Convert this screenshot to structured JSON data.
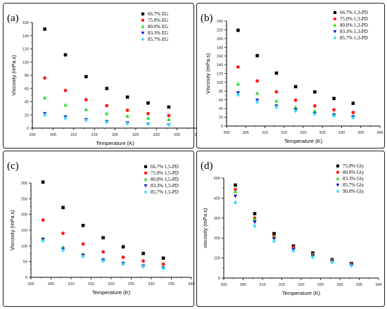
{
  "chart_data": [
    {
      "type": "scatter",
      "panel_label": "(a)",
      "xlabel": "Temperature (K)",
      "ylabel": "Viscosity (mPa.s)",
      "xlim": [
        300,
        340
      ],
      "ylim": [
        0,
        160
      ],
      "xticks": [
        300,
        305,
        310,
        315,
        320,
        325,
        330,
        335,
        340
      ],
      "yticks": [
        0,
        20,
        40,
        60,
        80,
        100,
        120,
        140,
        160
      ],
      "legend_position": "top-right",
      "series": [
        {
          "name": "66.7% EG",
          "marker": "square",
          "color": "#000000",
          "x": [
            303,
            308,
            313,
            318,
            323,
            328,
            333
          ],
          "y": [
            150,
            111,
            78,
            60,
            47,
            38,
            32
          ]
        },
        {
          "name": "75.0% EG",
          "marker": "circle",
          "color": "#ff1a1a",
          "x": [
            303,
            308,
            313,
            318,
            323,
            328,
            333
          ],
          "y": [
            76,
            57,
            43,
            34,
            27,
            22,
            19
          ]
        },
        {
          "name": "80.0% EG",
          "marker": "triangle-up",
          "color": "#22dd22",
          "x": [
            303,
            308,
            313,
            318,
            323,
            328,
            333
          ],
          "y": [
            46,
            35,
            28,
            22,
            18,
            15,
            13
          ]
        },
        {
          "name": "83.3% EG",
          "marker": "triangle-down",
          "color": "#1a1acc",
          "x": [
            303,
            308,
            313,
            318,
            323,
            328,
            333
          ],
          "y": [
            22,
            17,
            13,
            10,
            8,
            6,
            5
          ]
        },
        {
          "name": "85.7% EG",
          "marker": "diamond",
          "color": "#33ddff",
          "x": [
            303,
            308,
            313,
            318,
            323,
            328,
            333
          ],
          "y": [
            20,
            15,
            12,
            9,
            7,
            6,
            5
          ]
        }
      ]
    },
    {
      "type": "scatter",
      "panel_label": "(b)",
      "xlabel": "Temperature (K)",
      "ylabel": "Viscosity (mPa.s)",
      "xlim": [
        300,
        340
      ],
      "ylim": [
        0,
        240
      ],
      "xticks": [
        300,
        305,
        310,
        315,
        320,
        325,
        330,
        335,
        340
      ],
      "yticks": [
        0,
        20,
        40,
        60,
        80,
        100,
        120,
        140,
        160,
        180,
        200,
        220,
        240
      ],
      "legend_position": "top-right",
      "series": [
        {
          "name": "66.7% 1,3-PD",
          "marker": "square",
          "color": "#000000",
          "x": [
            303,
            308,
            313,
            318,
            323,
            328,
            333
          ],
          "y": [
            219,
            161,
            121,
            90,
            78,
            63,
            52
          ]
        },
        {
          "name": "75.0% 1,3-PD",
          "marker": "circle",
          "color": "#ff1a1a",
          "x": [
            303,
            308,
            313,
            318,
            323,
            328,
            333
          ],
          "y": [
            135,
            103,
            78,
            59,
            46,
            37,
            31
          ]
        },
        {
          "name": "80.0% 1,3-PD",
          "marker": "triangle-up",
          "color": "#22dd22",
          "x": [
            303,
            308,
            313,
            318,
            323,
            328,
            333
          ],
          "y": [
            96,
            75,
            57,
            43,
            34,
            27,
            23
          ]
        },
        {
          "name": "83.3% 1,3-PD",
          "marker": "triangle-down",
          "color": "#1a1acc",
          "x": [
            303,
            308,
            313,
            318,
            323,
            328,
            333
          ],
          "y": [
            76,
            59,
            46,
            37,
            29,
            25,
            21
          ]
        },
        {
          "name": "85.7% 1,3-PD",
          "marker": "diamond",
          "color": "#33ddff",
          "x": [
            303,
            308,
            313,
            318,
            323,
            328,
            333
          ],
          "y": [
            71,
            55,
            43,
            34,
            27,
            23,
            19
          ]
        }
      ]
    },
    {
      "type": "scatter",
      "panel_label": "(c)",
      "xlabel": "Temperature (K)",
      "ylabel": "Viscosity (mPa.s)",
      "xlim": [
        300,
        340
      ],
      "ylim": [
        0,
        300
      ],
      "xticks": [
        300,
        305,
        310,
        315,
        320,
        325,
        330,
        335,
        340
      ],
      "yticks": [
        0,
        50,
        100,
        150,
        200,
        250,
        300
      ],
      "legend_position": "top-right",
      "series": [
        {
          "name": "66.7% 1,5-PD",
          "marker": "square",
          "color": "#000000",
          "x": [
            303,
            308,
            313,
            318,
            323,
            328,
            333
          ],
          "y": [
            303,
            222,
            165,
            126,
            97,
            76,
            61
          ]
        },
        {
          "name": "75.0% 1,5-PD",
          "marker": "circle",
          "color": "#ff1a1a",
          "x": [
            303,
            308,
            313,
            318,
            323,
            328,
            333
          ],
          "y": [
            182,
            140,
            106,
            81,
            64,
            52,
            42
          ]
        },
        {
          "name": "80.0% 1,5-PD",
          "marker": "triangle-up",
          "color": "#22dd22",
          "x": [
            303,
            308,
            313,
            318,
            323,
            328,
            333
          ],
          "y": [
            124,
            96,
            74,
            58,
            47,
            38,
            32
          ]
        },
        {
          "name": "83.3% 1,5-PD",
          "marker": "triangle-down",
          "color": "#1a1acc",
          "x": [
            303,
            308,
            313,
            318,
            323,
            328,
            333
          ],
          "y": [
            121,
            90,
            70,
            55,
            44,
            36,
            30
          ]
        },
        {
          "name": "85.7% 1,5-PD",
          "marker": "diamond",
          "color": "#33ddff",
          "x": [
            303,
            308,
            313,
            318,
            323,
            328,
            333
          ],
          "y": [
            116,
            86,
            66,
            52,
            42,
            34,
            28
          ]
        }
      ]
    },
    {
      "type": "scatter",
      "panel_label": "(d)",
      "xlabel": "Temperature (K)",
      "ylabel": "viscosity (mPa.s)",
      "xlim": [
        300,
        340
      ],
      "ylim": [
        0,
        500
      ],
      "xticks": [
        300,
        305,
        310,
        315,
        320,
        325,
        330,
        335,
        340
      ],
      "yticks": [
        0,
        100,
        200,
        300,
        400,
        500
      ],
      "legend_position": "top-right",
      "series": [
        {
          "name": "75.0% Gly",
          "marker": "square",
          "color": "#000000",
          "x": [
            303,
            308,
            313,
            318,
            323,
            328,
            333
          ],
          "y": [
            465,
            322,
            222,
            160,
            125,
            92,
            73
          ]
        },
        {
          "name": "80.0% Gly",
          "marker": "circle",
          "color": "#ff1a1a",
          "x": [
            303,
            308,
            313,
            318,
            323,
            328,
            333
          ],
          "y": [
            443,
            300,
            210,
            152,
            118,
            88,
            70
          ]
        },
        {
          "name": "83.3% Gly",
          "marker": "triangle-up",
          "color": "#22dd22",
          "x": [
            303,
            308,
            313,
            318,
            323,
            328,
            333
          ],
          "y": [
            432,
            293,
            205,
            148,
            115,
            86,
            68
          ]
        },
        {
          "name": "85.7% Gly",
          "marker": "triangle-down",
          "color": "#1a1acc",
          "x": [
            303,
            308,
            313,
            318,
            323,
            328,
            333
          ],
          "y": [
            410,
            280,
            196,
            143,
            110,
            83,
            66
          ]
        },
        {
          "name": "90.0% Gly",
          "marker": "diamond",
          "color": "#33ddff",
          "x": [
            303,
            308,
            313,
            318,
            323,
            328,
            333
          ],
          "y": [
            378,
            260,
            185,
            135,
            104,
            79,
            62
          ]
        }
      ]
    }
  ]
}
